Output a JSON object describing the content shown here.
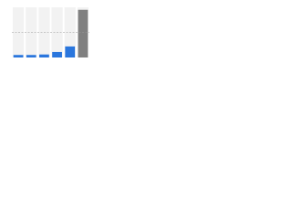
{
  "chart_data": {
    "type": "bar",
    "categories": [
      null,
      null,
      null,
      null,
      null,
      null
    ],
    "values": [
      5,
      5,
      6,
      11,
      22,
      95
    ],
    "colors": [
      "#2a76dd",
      "#2a76dd",
      "#2a76dd",
      "#2a76dd",
      "#2a76dd",
      "#808080"
    ],
    "ylim": [
      0,
      100
    ],
    "reference_line": 50,
    "band_shading": true
  }
}
